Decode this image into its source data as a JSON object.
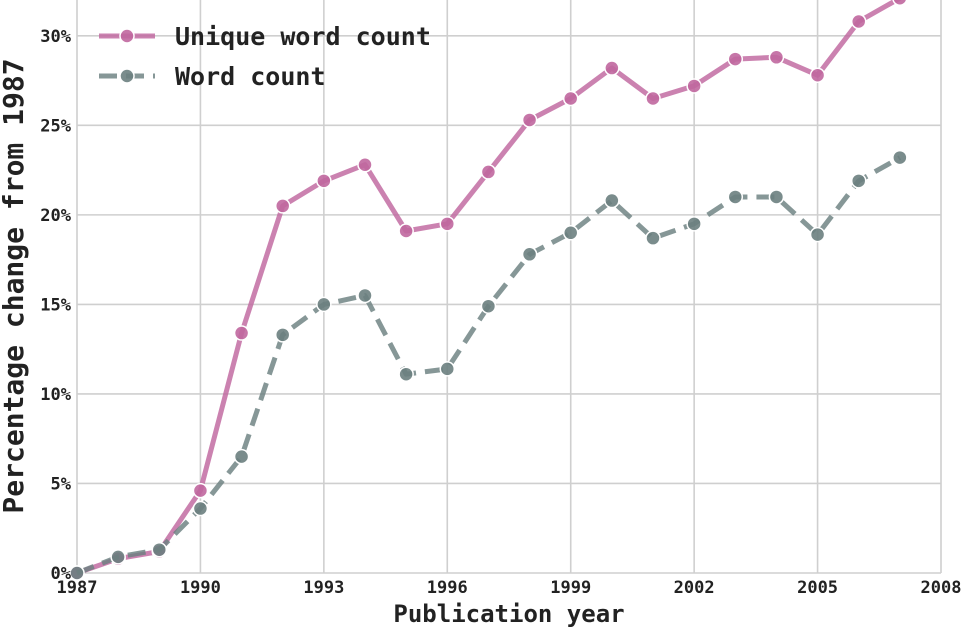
{
  "chart_data": {
    "type": "line",
    "xlabel": "Publication year",
    "ylabel": "Percentage change from 1987",
    "xlim": [
      1987,
      2008
    ],
    "ylim": [
      0,
      32
    ],
    "x_ticks": [
      1987,
      1990,
      1993,
      1996,
      1999,
      2002,
      2005,
      2008
    ],
    "y_ticks": [
      0,
      5,
      10,
      15,
      20,
      25,
      30
    ],
    "y_tick_labels": [
      "0%",
      "5%",
      "10%",
      "15%",
      "20%",
      "25%",
      "30%"
    ],
    "grid": true,
    "legend_position": "top-left",
    "x": [
      1987,
      1988,
      1989,
      1990,
      1991,
      1992,
      1993,
      1994,
      1995,
      1996,
      1997,
      1998,
      1999,
      2000,
      2001,
      2002,
      2003,
      2004,
      2005,
      2006,
      2007
    ],
    "series": [
      {
        "name": "Unique word count",
        "color": "#c0679f",
        "line_style": "solid",
        "values": [
          0.0,
          0.8,
          1.2,
          4.6,
          13.4,
          20.5,
          21.9,
          22.8,
          19.1,
          19.5,
          22.4,
          25.3,
          26.5,
          28.2,
          26.5,
          27.2,
          28.7,
          28.8,
          27.8,
          30.8,
          32.1
        ]
      },
      {
        "name": "Word count",
        "color": "#6b8080",
        "line_style": "dashed",
        "values": [
          0.0,
          0.9,
          1.3,
          3.6,
          6.5,
          13.3,
          15.0,
          15.5,
          11.1,
          11.4,
          14.9,
          17.8,
          19.0,
          20.8,
          18.7,
          19.5,
          21.0,
          21.0,
          18.9,
          21.9,
          23.2
        ]
      }
    ]
  }
}
